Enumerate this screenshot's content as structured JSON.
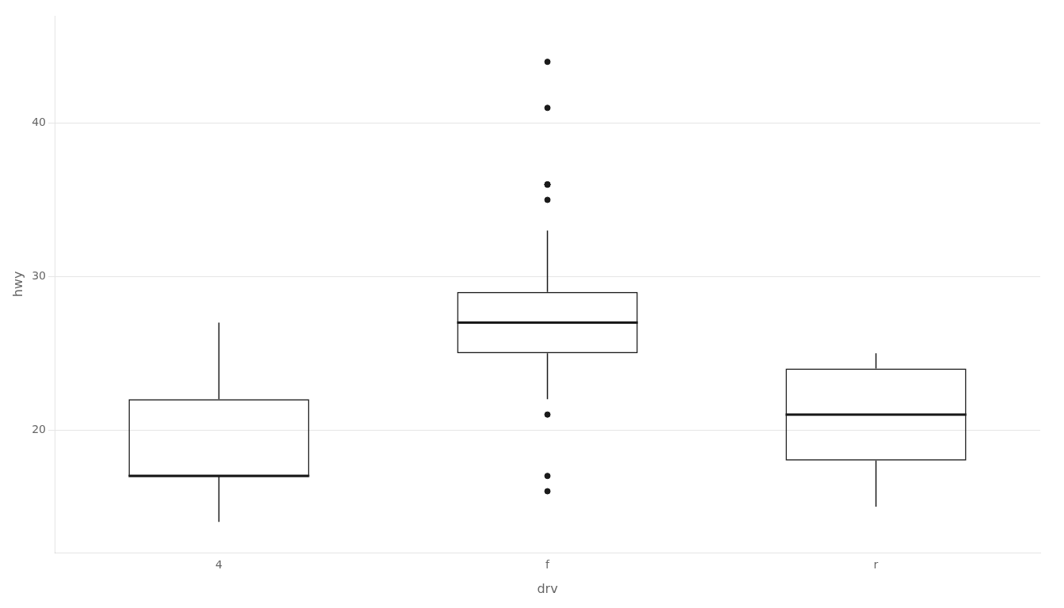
{
  "chart_data": {
    "type": "box",
    "categories": [
      "4",
      "f",
      "r"
    ],
    "xlabel": "drv",
    "ylabel": "hwy",
    "ylim": [
      12,
      47
    ],
    "yticks": [
      20,
      30,
      40
    ],
    "grid": "y",
    "color": "#1a1a1a",
    "values": [
      {
        "med": 17,
        "q1": 17,
        "q3": 22,
        "whislo": 14,
        "whishi": 27,
        "fliers": []
      },
      {
        "med": 27,
        "q1": 25,
        "q3": 29,
        "whislo": 22,
        "whishi": 33,
        "fliers": [
          44,
          41,
          36,
          36,
          36,
          35,
          21,
          17,
          16
        ]
      },
      {
        "med": 21,
        "q1": 18,
        "q3": 24,
        "whislo": 15,
        "whishi": 25,
        "fliers": []
      }
    ]
  }
}
